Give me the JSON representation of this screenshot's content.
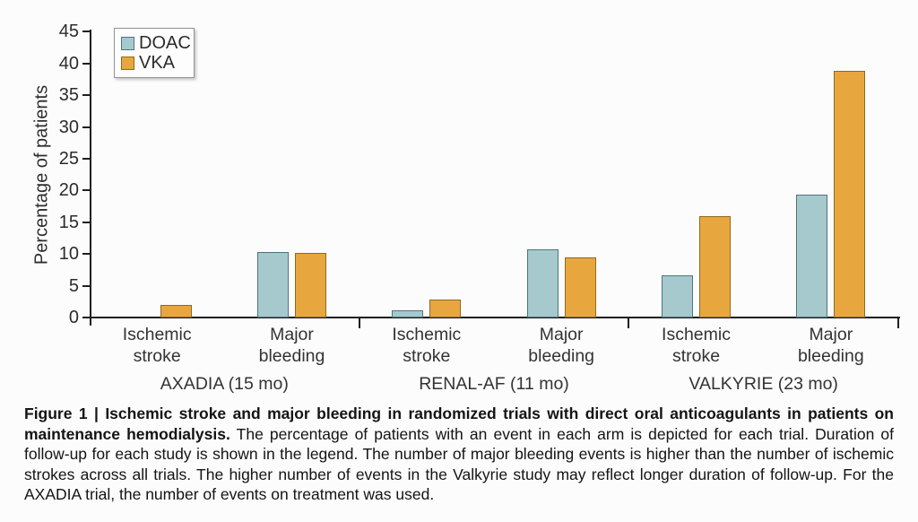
{
  "figure": {
    "caption_bold": "Figure 1 | Ischemic stroke and major bleeding in randomized trials with direct oral anticoagulants in patients on maintenance hemodialysis.",
    "caption_body": "The percentage of patients with an event in each arm is depicted for each trial. Duration of follow-up for each study is shown in the legend. The number of major bleeding events is higher than the number of ischemic strokes across all trials. The higher number of events in the Valkyrie study may reflect longer duration of follow-up. For the AXADIA trial, the number of events on treatment was used."
  },
  "chart_data": {
    "type": "bar",
    "title": "",
    "xlabel": "",
    "ylabel": "Percentage of patients",
    "ylim": [
      0,
      45
    ],
    "yticks": [
      0,
      5,
      10,
      15,
      20,
      25,
      30,
      35,
      40,
      45
    ],
    "grid": false,
    "legend_position": "top-left",
    "series": [
      {
        "name": "DOAC",
        "color": "#a6c9cd",
        "border": "#4e747f"
      },
      {
        "name": "VKA",
        "color": "#e8a73e",
        "border": "#8f6a1c"
      }
    ],
    "categories": [
      "Ischemic stroke",
      "Major bleeding"
    ],
    "category_label_lines": [
      "Ischemic\nstroke",
      "Major\nbleeding"
    ],
    "groups": [
      {
        "trial": "AXADIA (15 mo)",
        "values": {
          "DOAC": [
            0,
            10.3
          ],
          "VKA": [
            2.0,
            10.1
          ]
        }
      },
      {
        "trial": "RENAL-AF (11 mo)",
        "values": {
          "DOAC": [
            1.1,
            10.8
          ],
          "VKA": [
            2.8,
            9.5
          ]
        }
      },
      {
        "trial": "VALKYRIE (23 mo)",
        "values": {
          "DOAC": [
            6.7,
            19.3
          ],
          "VKA": [
            15.9,
            38.8
          ]
        }
      }
    ]
  }
}
